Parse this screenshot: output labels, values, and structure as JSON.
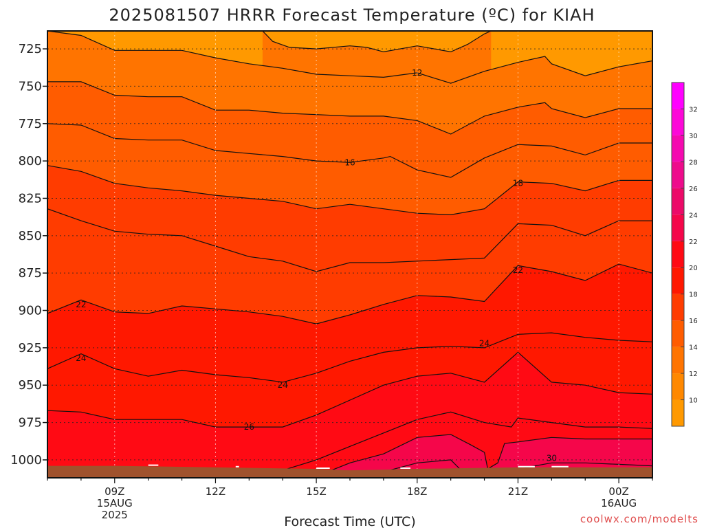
{
  "title": "2025081507 HRRR Forecast Temperature (ºC) for KIAH",
  "credit": "coolwx.com/modelts",
  "chart_data": {
    "type": "heatmap",
    "title": "2025081507 HRRR Forecast Temperature (ºC) for KIAH",
    "xlabel": "Forecast Time (UTC)",
    "ylabel": "",
    "x_unit": "hours since 15AUG 2025 07Z",
    "xlim": [
      7,
      25
    ],
    "ylim": [
      1012,
      713
    ],
    "y_ticks": [
      725,
      750,
      775,
      800,
      825,
      850,
      875,
      900,
      925,
      950,
      975,
      1000
    ],
    "y_tick_labels": [
      "725",
      "750",
      "775",
      "800",
      "825",
      "850",
      "875",
      "900",
      "925",
      "950",
      "975",
      "1000"
    ],
    "x_ticks": [
      {
        "x": 9,
        "label": "09Z",
        "sub": "15AUG",
        "sub2": "2025"
      },
      {
        "x": 12,
        "label": "12Z",
        "sub": "",
        "sub2": ""
      },
      {
        "x": 15,
        "label": "15Z",
        "sub": "",
        "sub2": ""
      },
      {
        "x": 18,
        "label": "18Z",
        "sub": "",
        "sub2": ""
      },
      {
        "x": 21,
        "label": "21Z",
        "sub": "",
        "sub2": ""
      },
      {
        "x": 24,
        "label": "00Z",
        "sub": "16AUG",
        "sub2": ""
      }
    ],
    "colorbar": {
      "levels": [
        8,
        10,
        12,
        14,
        16,
        18,
        20,
        22,
        24,
        26,
        28,
        30,
        32,
        34
      ],
      "colors": [
        "#ff9900",
        "#ff8800",
        "#ff7400",
        "#ff5c00",
        "#ff3c00",
        "#ff1800",
        "#ff0a14",
        "#f5064a",
        "#ec0a68",
        "#ee0c8c",
        "#f50ab0",
        "#fc08d8",
        "#ff00ff"
      ],
      "tick_labels": [
        "10",
        "12",
        "14",
        "16",
        "18",
        "20",
        "22",
        "24",
        "26",
        "28",
        "30",
        "32"
      ],
      "tick_values": [
        10,
        12,
        14,
        16,
        18,
        20,
        22,
        24,
        26,
        28,
        30,
        32
      ]
    },
    "isotherms": [
      {
        "value": 11,
        "points": [
          [
            13.4,
            713
          ],
          [
            13.7,
            720
          ],
          [
            14.2,
            724
          ],
          [
            15.0,
            725
          ],
          [
            16.0,
            723
          ],
          [
            16.5,
            724
          ],
          [
            17.0,
            727
          ],
          [
            18.0,
            723
          ],
          [
            19.0,
            727
          ],
          [
            19.5,
            722
          ],
          [
            20.0,
            715
          ],
          [
            20.2,
            713
          ]
        ]
      },
      {
        "value": 12,
        "points": [
          [
            7.0,
            713
          ],
          [
            8.0,
            716
          ],
          [
            9.0,
            726
          ],
          [
            10.0,
            726
          ],
          [
            11.0,
            726
          ],
          [
            12.0,
            731
          ],
          [
            13.0,
            735
          ],
          [
            14.0,
            738
          ],
          [
            15.0,
            742
          ],
          [
            16.0,
            743
          ],
          [
            17.0,
            744
          ],
          [
            18.0,
            741
          ],
          [
            19.0,
            748
          ],
          [
            20.0,
            740
          ],
          [
            21.0,
            734
          ],
          [
            21.8,
            730
          ],
          [
            22.0,
            735
          ],
          [
            23.0,
            743
          ],
          [
            24.0,
            737
          ],
          [
            25.0,
            733
          ]
        ]
      },
      {
        "value": 13,
        "points": [
          [
            7.0,
            747
          ],
          [
            8.0,
            747
          ],
          [
            9.0,
            756
          ],
          [
            10.0,
            757
          ],
          [
            11.0,
            757
          ],
          [
            12.0,
            766
          ],
          [
            13.0,
            766
          ],
          [
            14.0,
            768
          ],
          [
            15.0,
            769
          ],
          [
            16.0,
            770
          ],
          [
            17.0,
            770
          ],
          [
            18.0,
            773
          ],
          [
            19.0,
            782
          ],
          [
            20.0,
            770
          ],
          [
            21.0,
            764
          ],
          [
            21.8,
            761
          ],
          [
            22.0,
            765
          ],
          [
            23.0,
            771
          ],
          [
            24.0,
            765
          ],
          [
            25.0,
            765
          ]
        ]
      },
      {
        "value": 14,
        "points": [
          [
            7.0,
            775
          ],
          [
            8.0,
            776
          ],
          [
            9.0,
            785
          ],
          [
            10.0,
            786
          ],
          [
            11.0,
            786
          ],
          [
            12.0,
            793
          ],
          [
            13.0,
            795
          ],
          [
            14.0,
            797
          ],
          [
            15.0,
            800
          ],
          [
            16.0,
            801
          ],
          [
            17.0,
            798
          ],
          [
            17.2,
            797
          ],
          [
            18.0,
            806
          ],
          [
            19.0,
            811
          ],
          [
            20.0,
            798
          ],
          [
            21.0,
            789
          ],
          [
            22.0,
            790
          ],
          [
            23.0,
            796
          ],
          [
            24.0,
            788
          ],
          [
            25.0,
            788
          ]
        ]
      },
      {
        "value": 15,
        "points": [
          [
            7.0,
            803
          ],
          [
            8.0,
            807
          ],
          [
            9.0,
            815
          ],
          [
            10.0,
            818
          ],
          [
            11.0,
            820
          ],
          [
            12.0,
            823
          ],
          [
            13.0,
            825
          ],
          [
            14.0,
            827
          ],
          [
            15.0,
            832
          ],
          [
            16.0,
            829
          ],
          [
            17.0,
            832
          ],
          [
            18.0,
            835
          ],
          [
            19.0,
            836
          ],
          [
            20.0,
            832
          ],
          [
            21.0,
            814
          ],
          [
            22.0,
            815
          ],
          [
            23.0,
            820
          ],
          [
            24.0,
            813
          ],
          [
            25.0,
            813
          ]
        ]
      },
      {
        "value": 16,
        "points": [
          [
            7.0,
            832
          ],
          [
            8.0,
            840
          ],
          [
            9.0,
            847
          ],
          [
            10.0,
            849
          ],
          [
            11.0,
            850
          ],
          [
            12.0,
            857
          ],
          [
            13.0,
            864
          ],
          [
            14.0,
            867
          ],
          [
            15.0,
            874
          ],
          [
            16.0,
            868
          ],
          [
            17.0,
            868
          ],
          [
            18.0,
            867
          ],
          [
            19.0,
            866
          ],
          [
            20.0,
            865
          ],
          [
            21.0,
            842
          ],
          [
            22.0,
            843
          ],
          [
            23.0,
            850
          ],
          [
            24.0,
            840
          ],
          [
            25.0,
            840
          ]
        ]
      },
      {
        "value": 17,
        "points": [
          [
            7.0,
            902
          ],
          [
            8.0,
            893
          ],
          [
            9.0,
            901
          ],
          [
            10.0,
            902
          ],
          [
            11.0,
            897
          ],
          [
            12.0,
            899
          ],
          [
            13.0,
            901
          ],
          [
            14.0,
            904
          ],
          [
            15.0,
            909
          ],
          [
            16.0,
            903
          ],
          [
            17.0,
            896
          ],
          [
            18.0,
            890
          ],
          [
            19.0,
            891
          ],
          [
            20.0,
            894
          ],
          [
            21.0,
            870
          ],
          [
            22.0,
            874
          ],
          [
            23.0,
            880
          ],
          [
            24.0,
            869
          ],
          [
            25.0,
            875
          ]
        ]
      },
      {
        "value": 18,
        "points": [
          [
            7.0,
            939
          ],
          [
            8.0,
            929
          ],
          [
            9.0,
            939
          ],
          [
            10.0,
            944
          ],
          [
            11.0,
            940
          ],
          [
            12.0,
            943
          ],
          [
            13.0,
            945
          ],
          [
            14.0,
            948
          ],
          [
            15.0,
            942
          ],
          [
            16.0,
            934
          ],
          [
            17.0,
            928
          ],
          [
            18.0,
            925
          ],
          [
            19.0,
            924
          ],
          [
            20.0,
            925
          ],
          [
            21.0,
            916
          ],
          [
            22.0,
            915
          ],
          [
            23.0,
            918
          ],
          [
            24.0,
            920
          ],
          [
            25.0,
            921
          ]
        ]
      },
      {
        "value": 19,
        "points": [
          [
            7.0,
            967
          ],
          [
            8.0,
            968
          ],
          [
            9.0,
            973
          ],
          [
            10.0,
            973
          ],
          [
            11.0,
            973
          ],
          [
            12.0,
            978
          ],
          [
            13.0,
            978
          ],
          [
            14.0,
            978
          ],
          [
            15.0,
            970
          ],
          [
            16.0,
            960
          ],
          [
            17.0,
            950
          ],
          [
            18.0,
            944
          ],
          [
            19.0,
            942
          ],
          [
            20.0,
            948
          ],
          [
            21.0,
            928
          ],
          [
            22.0,
            948
          ],
          [
            23.0,
            950
          ],
          [
            24.0,
            955
          ],
          [
            25.0,
            956
          ]
        ]
      },
      {
        "value": 20,
        "points": [
          [
            13.3,
            1012
          ],
          [
            14.0,
            1007
          ],
          [
            15.0,
            1000
          ],
          [
            16.0,
            991
          ],
          [
            17.0,
            982
          ],
          [
            18.0,
            973
          ],
          [
            19.0,
            968
          ],
          [
            20.0,
            975
          ],
          [
            20.8,
            978
          ],
          [
            21.0,
            972
          ],
          [
            22.0,
            975
          ],
          [
            23.0,
            978
          ],
          [
            24.0,
            978
          ],
          [
            25.0,
            979
          ]
        ]
      },
      {
        "value": 21,
        "points": [
          [
            14.4,
            1012
          ],
          [
            15.0,
            1011
          ],
          [
            16.0,
            1002
          ],
          [
            17.0,
            996
          ],
          [
            18.0,
            985
          ],
          [
            19.0,
            983
          ],
          [
            19.6,
            990
          ],
          [
            20.0,
            995
          ],
          [
            20.1,
            1006
          ],
          [
            20.4,
            1002
          ],
          [
            20.6,
            989
          ],
          [
            21.0,
            988
          ],
          [
            22.0,
            985
          ],
          [
            23.0,
            986
          ],
          [
            24.0,
            986
          ],
          [
            25.0,
            986
          ]
        ]
      },
      {
        "value": 22,
        "points": [
          [
            16.0,
            1012
          ],
          [
            16.5,
            1010
          ],
          [
            17.0,
            1008
          ],
          [
            18.0,
            1002
          ],
          [
            19.0,
            1000
          ],
          [
            19.4,
            1009
          ],
          [
            19.8,
            1012
          ],
          [
            21.0,
            1012
          ],
          [
            21.0,
            1006
          ],
          [
            22.0,
            1002
          ],
          [
            23.0,
            1002
          ],
          [
            24.0,
            1003
          ],
          [
            25.0,
            1004
          ]
        ]
      }
    ],
    "contour_labels": [
      {
        "text": "12",
        "x": 18.0,
        "y": 741
      },
      {
        "text": "16",
        "x": 16.0,
        "y": 801
      },
      {
        "text": "18",
        "x": 21.0,
        "y": 815
      },
      {
        "text": "22",
        "x": 8.0,
        "y": 896
      },
      {
        "text": "22",
        "x": 21.0,
        "y": 873
      },
      {
        "text": "24",
        "x": 8.0,
        "y": 932
      },
      {
        "text": "24",
        "x": 14.0,
        "y": 950
      },
      {
        "text": "24",
        "x": 20.0,
        "y": 922
      },
      {
        "text": "26",
        "x": 13.0,
        "y": 978
      },
      {
        "text": "30",
        "x": 22.0,
        "y": 999
      }
    ],
    "terrain": {
      "color": "#a0522d",
      "top": [
        [
          7.0,
          1004
        ],
        [
          9.0,
          1004
        ],
        [
          12.0,
          1005
        ],
        [
          15.0,
          1006
        ],
        [
          16.0,
          1007
        ],
        [
          18.0,
          1006
        ],
        [
          21.0,
          1005
        ],
        [
          25.0,
          1005
        ]
      ],
      "snow": [
        [
          10.0,
          1004
        ],
        [
          10.3,
          1004
        ],
        [
          12.6,
          1005
        ],
        [
          12.7,
          1005
        ],
        [
          15.0,
          1006
        ],
        [
          15.4,
          1006
        ],
        [
          17.5,
          1006
        ],
        [
          17.8,
          1006
        ],
        [
          21.0,
          1005
        ],
        [
          21.5,
          1005
        ],
        [
          22.0,
          1005
        ],
        [
          22.5,
          1005
        ]
      ]
    },
    "grid": true,
    "legend": "right colorbar"
  }
}
